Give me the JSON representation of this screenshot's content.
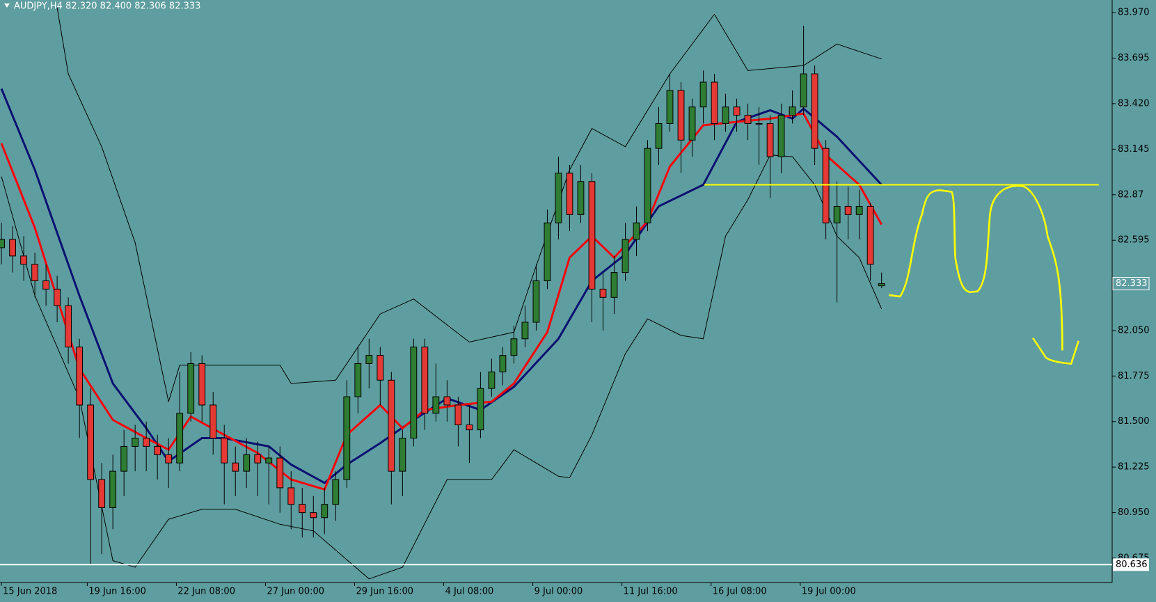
{
  "chart_data": {
    "type": "candlestick",
    "title": "AUDJPY,H4  82.320 82.400 82.306 82.333",
    "background": "#5f9ea0",
    "up_color": "#2e7d32",
    "down_color": "#e53935",
    "open": [
      82.55,
      82.6,
      82.5,
      82.45,
      82.35,
      82.3,
      82.2,
      81.95,
      81.6,
      81.15,
      80.98,
      81.2,
      81.35,
      81.4,
      81.35,
      81.3,
      81.25,
      81.55,
      81.85,
      81.6,
      81.4,
      81.25,
      81.2,
      81.3,
      81.25,
      81.28,
      81.1,
      81.0,
      80.95,
      80.92,
      81.0,
      81.15,
      81.65,
      81.85,
      81.9,
      81.75,
      81.2,
      81.4,
      81.95,
      81.55,
      81.65,
      81.6,
      81.48,
      81.45,
      81.7,
      81.8,
      81.9,
      82.0,
      82.1,
      82.35,
      82.7,
      83.0,
      82.75,
      82.95,
      82.3,
      82.25,
      82.4,
      82.6,
      82.7,
      83.15,
      83.3,
      83.5,
      83.2,
      83.4,
      83.55,
      83.3,
      83.4,
      83.35,
      83.3,
      83.3,
      83.1,
      83.35,
      83.4,
      83.6,
      83.15,
      82.7,
      82.8,
      82.75,
      82.8,
      82.32
    ],
    "high": [
      82.7,
      82.68,
      82.62,
      82.52,
      82.45,
      82.38,
      82.25,
      82.0,
      81.7,
      81.25,
      81.3,
      81.45,
      81.48,
      81.5,
      81.42,
      81.4,
      81.8,
      81.92,
      81.9,
      81.68,
      81.48,
      81.35,
      81.4,
      81.38,
      81.35,
      81.35,
      81.2,
      81.1,
      81.05,
      81.1,
      81.2,
      81.75,
      81.95,
      82.0,
      81.95,
      81.8,
      81.45,
      82.0,
      82.0,
      81.85,
      81.75,
      81.65,
      81.6,
      81.8,
      81.88,
      81.95,
      82.08,
      82.2,
      82.45,
      82.78,
      83.1,
      83.05,
      83.05,
      83.0,
      82.4,
      82.5,
      82.7,
      82.8,
      83.2,
      83.4,
      83.6,
      83.55,
      83.45,
      83.62,
      83.6,
      83.48,
      83.45,
      83.42,
      83.4,
      83.35,
      83.42,
      83.5,
      83.89,
      83.65,
      83.2,
      82.95,
      82.92,
      82.9,
      82.82,
      82.4
    ],
    "low": [
      82.45,
      82.4,
      82.35,
      82.25,
      82.2,
      82.1,
      81.85,
      81.4,
      80.64,
      80.7,
      80.85,
      81.05,
      81.2,
      81.2,
      81.15,
      81.1,
      81.2,
      81.5,
      81.5,
      81.3,
      81.0,
      81.05,
      81.1,
      81.05,
      81.0,
      80.95,
      80.85,
      80.8,
      80.8,
      80.82,
      80.9,
      81.1,
      81.55,
      81.7,
      81.6,
      81.0,
      81.05,
      81.35,
      81.45,
      81.5,
      81.5,
      81.35,
      81.25,
      81.4,
      81.65,
      81.72,
      81.85,
      81.95,
      82.05,
      82.3,
      82.6,
      82.65,
      82.7,
      82.1,
      82.05,
      82.15,
      82.35,
      82.5,
      82.65,
      83.05,
      83.25,
      83.0,
      83.1,
      83.3,
      83.2,
      83.25,
      83.25,
      83.2,
      83.05,
      82.85,
      83.0,
      83.3,
      83.35,
      83.05,
      82.6,
      82.22,
      82.6,
      82.6,
      82.35,
      82.306
    ],
    "close": [
      82.6,
      82.5,
      82.45,
      82.35,
      82.3,
      82.2,
      81.95,
      81.6,
      81.15,
      80.98,
      81.2,
      81.35,
      81.4,
      81.35,
      81.3,
      81.25,
      81.55,
      81.85,
      81.6,
      81.4,
      81.25,
      81.2,
      81.3,
      81.25,
      81.28,
      81.1,
      81.0,
      80.95,
      80.92,
      81.0,
      81.15,
      81.65,
      81.85,
      81.9,
      81.75,
      81.2,
      81.4,
      81.95,
      81.55,
      81.65,
      81.6,
      81.48,
      81.45,
      81.7,
      81.8,
      81.9,
      82.0,
      82.1,
      82.35,
      82.7,
      83.0,
      82.75,
      82.95,
      82.3,
      82.25,
      82.4,
      82.6,
      82.7,
      83.15,
      83.3,
      83.5,
      83.2,
      83.4,
      83.55,
      83.3,
      83.4,
      83.35,
      83.3,
      83.3,
      83.1,
      83.35,
      83.4,
      83.6,
      83.15,
      82.7,
      82.8,
      82.75,
      82.8,
      82.45,
      82.333
    ],
    "lines": [
      {
        "color": "#000000",
        "width": 1,
        "x": [
          0,
          3,
          7,
          10,
          12,
          15,
          18,
          21,
          25,
          28,
          33,
          36,
          40,
          44,
          46,
          50,
          51,
          53,
          56,
          58,
          61,
          63,
          65,
          67,
          69,
          71,
          73,
          75,
          77,
          79
        ],
        "values": [
          82.98,
          82.26,
          81.64,
          80.66,
          80.62,
          80.91,
          80.97,
          80.97,
          80.88,
          80.84,
          80.55,
          80.62,
          81.15,
          81.15,
          81.33,
          81.17,
          81.16,
          81.42,
          81.91,
          82.12,
          82.02,
          82.0,
          82.62,
          82.84,
          83.11,
          83.1,
          82.93,
          82.62,
          82.49,
          82.18
        ]
      },
      {
        "color": "#000000",
        "width": 1,
        "x": [
          5,
          6,
          9,
          12,
          15,
          16,
          20,
          25,
          26,
          30,
          34,
          37,
          42,
          46,
          48,
          51,
          53,
          56,
          60,
          64,
          67,
          72,
          75,
          79
        ],
        "values": [
          84.0,
          83.6,
          83.16,
          82.58,
          81.62,
          81.84,
          81.84,
          81.84,
          81.73,
          81.75,
          82.15,
          82.24,
          81.98,
          82.04,
          82.44,
          83.02,
          83.27,
          83.16,
          83.6,
          83.96,
          83.62,
          83.65,
          83.78,
          83.69
        ]
      },
      {
        "color": "#0a1172",
        "width": 3,
        "x": [
          0,
          3,
          7,
          10,
          13,
          15,
          18,
          20,
          24,
          26,
          29,
          31,
          34,
          37,
          40,
          43,
          46,
          50,
          53,
          56,
          59,
          63,
          66,
          69,
          71,
          72,
          75,
          79
        ],
        "values": [
          83.51,
          83.02,
          82.26,
          81.73,
          81.46,
          81.26,
          81.4,
          81.4,
          81.35,
          81.24,
          81.13,
          81.24,
          81.37,
          81.51,
          81.64,
          81.57,
          81.71,
          82.0,
          82.35,
          82.51,
          82.8,
          82.93,
          83.31,
          83.38,
          83.33,
          83.39,
          83.22,
          82.93
        ]
      },
      {
        "color": "#ff0000",
        "width": 3,
        "x": [
          0,
          3,
          7,
          10,
          13,
          15,
          17,
          20,
          23,
          26,
          29,
          31,
          34,
          36,
          38,
          41,
          44,
          46,
          49,
          51,
          53,
          55,
          58,
          60,
          63,
          66,
          69,
          72,
          74,
          77,
          79
        ],
        "values": [
          83.18,
          82.67,
          81.82,
          81.51,
          81.4,
          81.33,
          81.53,
          81.42,
          81.31,
          81.15,
          81.09,
          81.42,
          81.6,
          81.46,
          81.57,
          81.6,
          81.62,
          81.73,
          82.04,
          82.49,
          82.62,
          82.49,
          82.71,
          83.04,
          83.29,
          83.31,
          83.33,
          83.36,
          83.11,
          82.93,
          82.69
        ]
      }
    ],
    "level": {
      "color": "#ffff00",
      "x": [
        63.1,
        98.5
      ],
      "value": 82.93
    },
    "support": {
      "color": "#ffffff",
      "value": 80.636
    },
    "last_price": 82.333,
    "xlim": [
      -0.13,
      99.7
    ],
    "ylim": [
      80.528,
      84.046
    ],
    "yticks": [
      80.675,
      {
        "value": 80.95,
        "label": "80.950"
      },
      81.225,
      {
        "value": 81.5,
        "label": "81.500"
      },
      81.775,
      {
        "value": 82.05,
        "label": "82.050"
      },
      82.595,
      82.87,
      83.145,
      {
        "value": 83.42,
        "label": "83.420"
      },
      83.695,
      {
        "value": 83.97,
        "label": "83.970"
      }
    ],
    "xticks": [
      {
        "value": 0,
        "label": "15 Jun 2018"
      },
      {
        "value": 7.7,
        "label": "19 Jun 16:00"
      },
      {
        "value": 15.7,
        "label": "22 Jun 08:00"
      },
      {
        "value": 23.7,
        "label": "27 Jun 00:00"
      },
      {
        "value": 31.7,
        "label": "29 Jun 16:00"
      },
      {
        "value": 39.7,
        "label": "4 Jul 08:00"
      },
      {
        "value": 47.7,
        "label": "9 Jul 00:00"
      },
      {
        "value": 55.7,
        "label": "11 Jul 16:00"
      },
      {
        "value": 63.7,
        "label": "16 Jul 08:00"
      },
      {
        "value": 71.7,
        "label": "19 Jul 00:00"
      }
    ]
  }
}
